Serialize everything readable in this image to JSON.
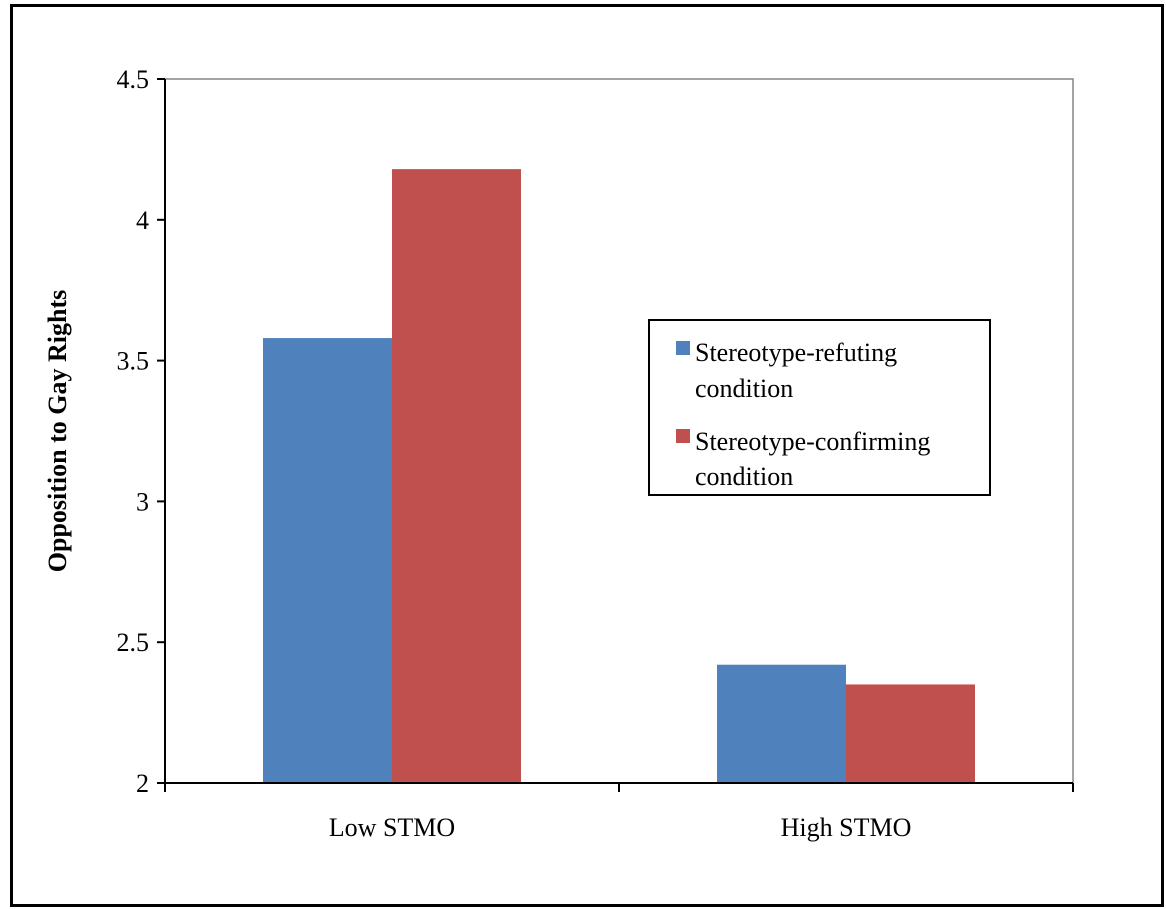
{
  "chart_data": {
    "type": "bar",
    "title": "",
    "xlabel": "",
    "ylabel": "Opposition to Gay Rights",
    "categories": [
      "Low STMO",
      "High STMO"
    ],
    "series": [
      {
        "name": "Stereotype-refuting condition",
        "color": "#4f81bd",
        "values": [
          3.58,
          2.42
        ]
      },
      {
        "name": "Stereotype-confirming condition",
        "color": "#c0504d",
        "values": [
          4.18,
          2.35
        ]
      }
    ],
    "legend": {
      "position": "right",
      "entries": [
        {
          "line1": "Stereotype-refuting",
          "line2": "condition"
        },
        {
          "line1": "Stereotype-confirming",
          "line2": "condition"
        }
      ]
    },
    "yticks": [
      "2",
      "2.5",
      "3",
      "3.5",
      "4",
      "4.5"
    ],
    "ylim": [
      2,
      4.5
    ],
    "grid": false
  }
}
